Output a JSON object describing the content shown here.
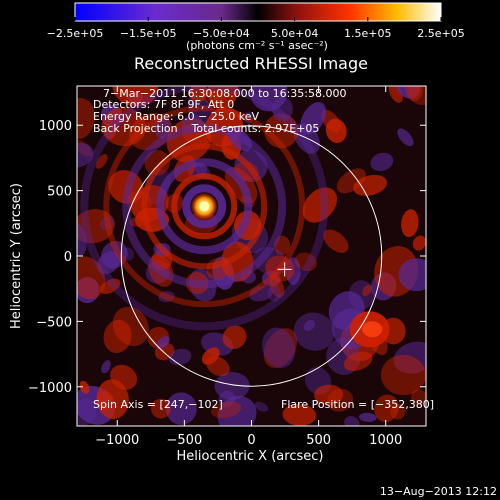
{
  "chart_data": {
    "type": "heatmap",
    "title": "Reconstructed RHESSI Image",
    "xlabel": "Heliocentric X (arcsec)",
    "ylabel": "Heliocentric Y (arcsec)",
    "xlim": [
      -1300,
      1300
    ],
    "ylim": [
      -1300,
      1300
    ],
    "x_ticks": [
      -1000,
      -500,
      0,
      500,
      1000
    ],
    "y_ticks": [
      -1000,
      -500,
      0,
      500,
      1000
    ],
    "x_tick_labels": [
      "−1000",
      "−500",
      "0",
      "500",
      "1000"
    ],
    "y_tick_labels": [
      "−1000",
      "−500",
      "0",
      "500",
      "1000"
    ],
    "colorbar": {
      "range": [
        -250000,
        250000
      ],
      "ticks": [
        -250000,
        -150000,
        -50000,
        50000,
        150000,
        250000
      ],
      "tick_labels": [
        "−2.5e+05",
        "−1.5e+05",
        "−5.0e+04",
        "5.0e+04",
        "1.5e+05",
        "2.5e+05"
      ],
      "units": "(photons cm⁻² s⁻¹ asec⁻²)"
    },
    "annotations": [
      "7−Mar−2011 16:30:08.000 to 16:35:58.000",
      "Detectors: 7F 8F 9F, Att 0",
      "Energy Range: 6.0 − 25.0 keV",
      "Back Projection    Total counts: 2.97E+05",
      "Spin Axis = [247,−102]",
      "Flare Position = [−352,380]"
    ],
    "flare_position": [
      -352,
      380
    ],
    "spin_axis": [
      247,
      -102
    ],
    "solar_limb_center": [
      0,
      0
    ],
    "solar_limb_radius_arcsec": 970
  },
  "footer_timestamp": "13−Aug−2013 12:12",
  "colors": {
    "background": "#000000",
    "limb": "#ffffff",
    "positive_peak": "#ffff80",
    "positive": "#cc2200",
    "negative": "#5a2a9a"
  }
}
